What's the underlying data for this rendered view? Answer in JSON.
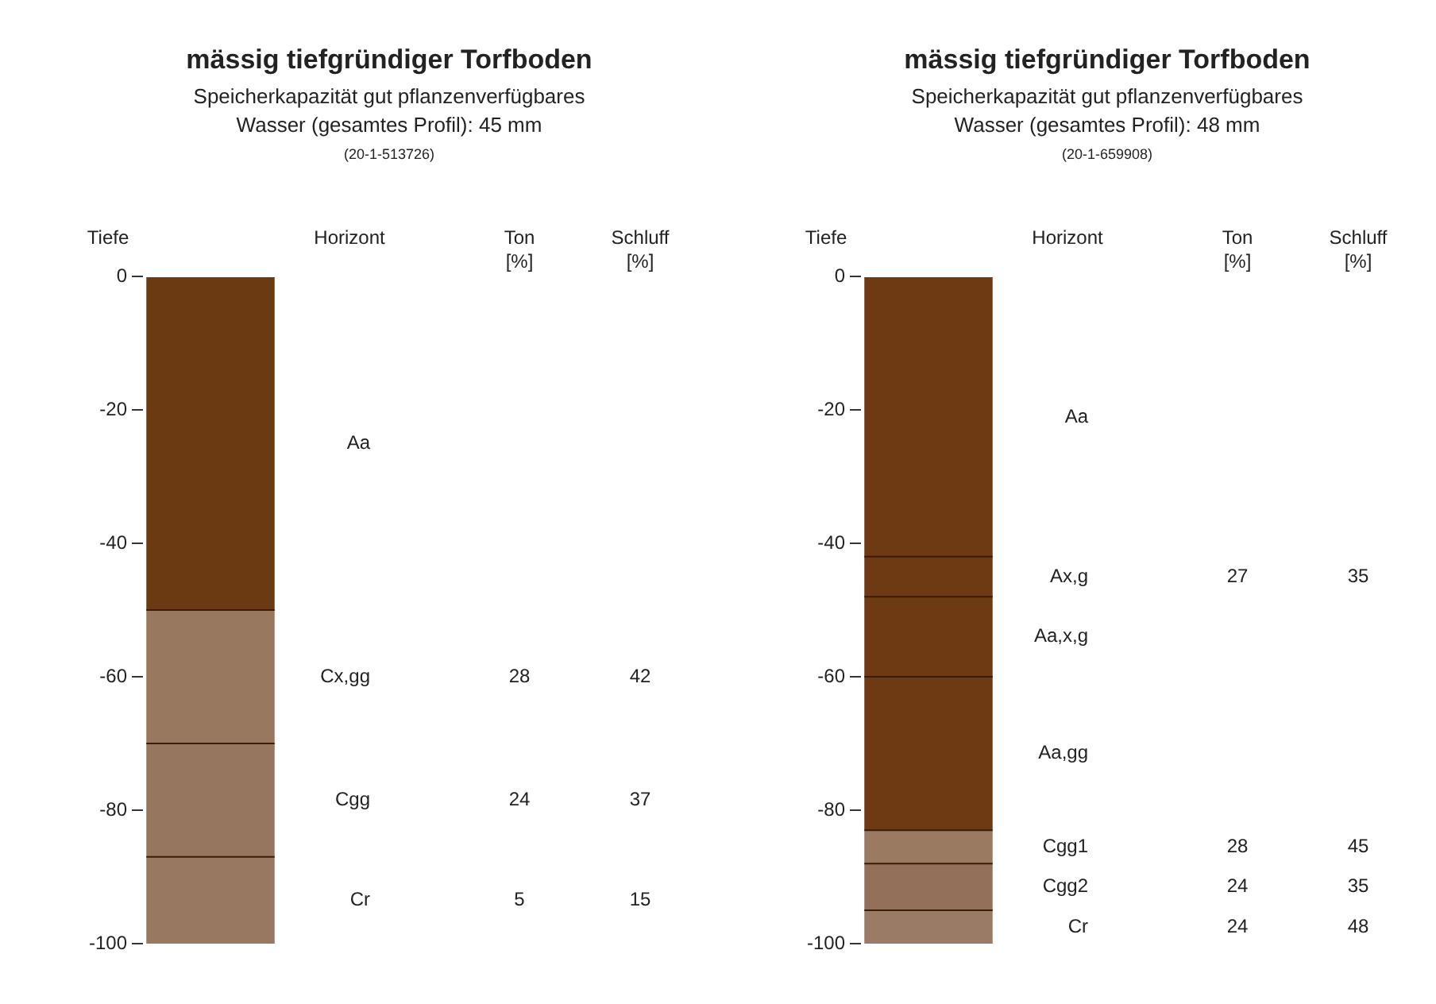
{
  "chart_data": [
    {
      "type": "bar",
      "stacked": true,
      "title": "mässig tiefgründiger Torfboden",
      "subtitle": "Speicherkapazität gut pflanzenverfügbares\nWasser (gesamtes Profil): 45 mm",
      "ylabel": "Tiefe",
      "categories": [
        null
      ],
      "ylim": [
        -100,
        0
      ],
      "yticks": [
        0,
        -20,
        -40,
        -60,
        -80,
        -100
      ],
      "series": [
        {
          "name": "Aa",
          "color": "#6b3a12",
          "values": [
            -50
          ]
        },
        {
          "name": "Cx,gg",
          "color": "#98785f",
          "values": [
            -20
          ]
        },
        {
          "name": "Cgg",
          "color": "#96765e",
          "values": [
            -17
          ]
        },
        {
          "name": "Cr",
          "color": "#987860",
          "values": [
            -13
          ]
        }
      ],
      "annotations": [
        "(20-1-513726)",
        "Horizont",
        "Ton\n[%]",
        "Schluff\n[%]",
        "28",
        "42",
        "24",
        "37",
        "5",
        "15"
      ]
    },
    {
      "type": "bar",
      "stacked": true,
      "title": "mässig tiefgründiger Torfboden",
      "subtitle": "Speicherkapazität gut pflanzenverfügbares\nWasser (gesamtes Profil): 48 mm",
      "ylabel": "Tiefe",
      "categories": [
        null
      ],
      "ylim": [
        -100,
        0
      ],
      "yticks": [
        0,
        -20,
        -40,
        -60,
        -80,
        -100
      ],
      "series": [
        {
          "name": "Aa",
          "color": "#6d3a13",
          "values": [
            -42
          ]
        },
        {
          "name": "Ax,g",
          "color": "#6d3a13",
          "values": [
            -6
          ]
        },
        {
          "name": "Aa,x,g",
          "color": "#6d3a13",
          "values": [
            -12
          ]
        },
        {
          "name": "Aa,gg",
          "color": "#6d3a13",
          "values": [
            -23
          ]
        },
        {
          "name": "Cgg1",
          "color": "#9b7a62",
          "values": [
            -5
          ]
        },
        {
          "name": "Cgg2",
          "color": "#92705a",
          "values": [
            -7
          ]
        },
        {
          "name": "Cr",
          "color": "#9a7b66",
          "values": [
            -5
          ]
        }
      ],
      "annotations": [
        "(20-1-659908)",
        "Horizont",
        "Ton\n[%]",
        "Schluff\n[%]",
        "27",
        "35",
        "28",
        "45",
        "24",
        "35",
        "24",
        "48"
      ]
    }
  ]
}
